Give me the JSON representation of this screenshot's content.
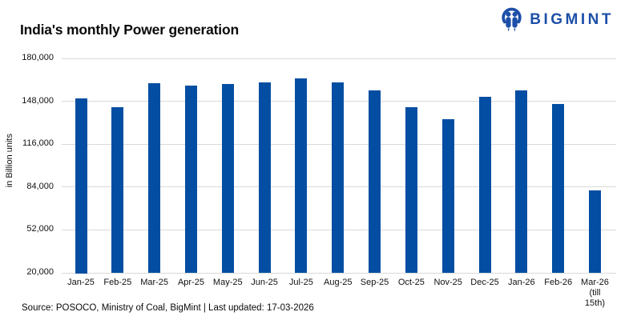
{
  "header": {
    "title": "India's monthly Power generation",
    "brand": {
      "name": "BIGMINT",
      "color": "#1d4fa8",
      "icon": "bigmint-people-icon"
    }
  },
  "chart_data": {
    "type": "bar",
    "title": "India's monthly Power generation",
    "xlabel": "",
    "ylabel": "in Billion units",
    "ylim": [
      20000,
      180000
    ],
    "yticks": [
      20000,
      52000,
      84000,
      116000,
      148000,
      180000
    ],
    "grid": true,
    "legend": false,
    "bar_color": "#034ea2",
    "gridline_color": "#d9d9d9",
    "categories": [
      "Jan-25",
      "Feb-25",
      "Mar-25",
      "Apr-25",
      "May-25",
      "Jun-25",
      "Jul-25",
      "Aug-25",
      "Sep-25",
      "Oct-25",
      "Nov-25",
      "Dec-25",
      "Jan-26",
      "Feb-26",
      "Mar-26"
    ],
    "last_category_note_lines": [
      "(till",
      "15th)"
    ],
    "values": [
      150000,
      143500,
      161000,
      159500,
      160500,
      161500,
      164500,
      161500,
      156000,
      143000,
      134500,
      151000,
      156000,
      145500,
      81000
    ]
  },
  "footer": {
    "source_text": "Source: POSOCO, Ministry of Coal, BigMint | Last updated: 17-03-2026"
  }
}
